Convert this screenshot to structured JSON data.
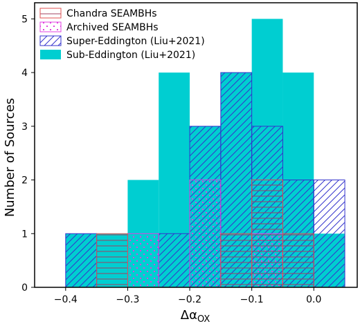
{
  "chart_data": {
    "type": "bar",
    "subtype": "overlaid histogram",
    "xlabel": "Δα",
    "xlabel_subscript": "OX",
    "ylabel": "Number of Sources",
    "xlim": [
      -0.45,
      0.07
    ],
    "ylim": [
      0,
      5.3
    ],
    "xticks": [
      -0.4,
      -0.3,
      -0.2,
      -0.1,
      0.0
    ],
    "xtick_labels": [
      "−0.4",
      "−0.3",
      "−0.2",
      "−0.1",
      "0.0"
    ],
    "yticks": [
      0,
      1,
      2,
      3,
      4,
      5
    ],
    "ytick_labels": [
      "0",
      "1",
      "2",
      "3",
      "4",
      "5"
    ],
    "bin_edges": [
      -0.4,
      -0.35,
      -0.3,
      -0.25,
      -0.2,
      -0.15,
      -0.1,
      -0.05,
      0.0,
      0.05
    ],
    "legend_position": "upper-left",
    "series": [
      {
        "name": "Sub-Eddington (Liu+2021)",
        "style": "solid",
        "color": "#00CED1",
        "counts": [
          1,
          1,
          2,
          4,
          3,
          4,
          5,
          4,
          1
        ]
      },
      {
        "name": "Super-Eddington (Liu+2021)",
        "style": "diagonal-hatch",
        "color": "#3333CC",
        "counts": [
          1,
          0,
          0,
          1,
          3,
          4,
          3,
          2,
          2
        ]
      },
      {
        "name": "Archived SEAMBHs",
        "style": "dotted-hatch",
        "color": "#E040E0",
        "counts": [
          0,
          0,
          1,
          0,
          2,
          0,
          1,
          0,
          0
        ]
      },
      {
        "name": "Chandra SEAMBHs",
        "style": "horizontal-hatch",
        "color": "#E05050",
        "counts": [
          0,
          1,
          0,
          0,
          0,
          1,
          2,
          1,
          0
        ]
      }
    ]
  }
}
